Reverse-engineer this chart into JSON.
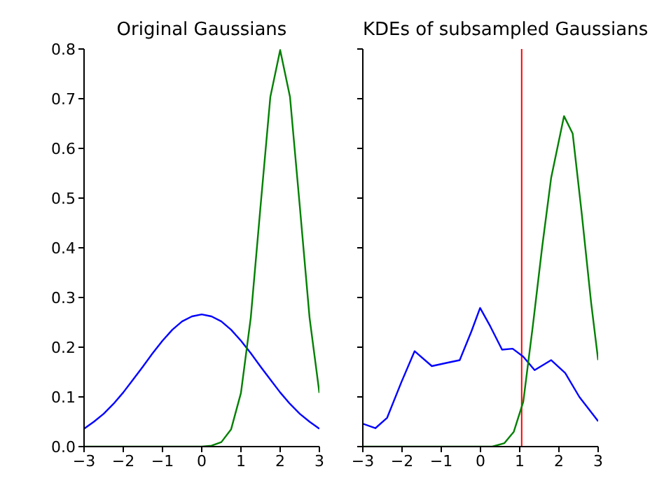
{
  "chart_data": [
    {
      "type": "line",
      "title": "Original Gaussians",
      "xlim": [
        -3,
        3
      ],
      "xticks": [
        -3,
        -2,
        -1,
        0,
        1,
        2,
        3
      ],
      "ylim": [
        0,
        0.8
      ],
      "yticks": [
        {
          "value": 0,
          "label": "0.0"
        },
        {
          "value": 0.1,
          "label": "0.1"
        },
        {
          "value": 0.2,
          "label": "0.2"
        },
        {
          "value": 0.3,
          "label": "0.3"
        },
        {
          "value": 0.4,
          "label": "0.4"
        },
        {
          "value": 0.5,
          "label": "0.5"
        },
        {
          "value": 0.6,
          "label": "0.6"
        },
        {
          "value": 0.7,
          "label": "0.7"
        },
        {
          "value": 0.8,
          "label": "0.8"
        }
      ],
      "grid": false,
      "legend": false,
      "marker": "none",
      "line_style": "solid",
      "series": [
        {
          "color": "#0000ff",
          "x": [
            -3,
            -2.75,
            -2.5,
            -2.25,
            -2,
            -1.75,
            -1.5,
            -1.25,
            -1,
            -0.75,
            -0.5,
            -0.25,
            0,
            0.25,
            0.5,
            0.75,
            1,
            1.25,
            1.5,
            1.75,
            2,
            2.25,
            2.5,
            2.75,
            3
          ],
          "values": [
            0.036,
            0.05,
            0.066,
            0.086,
            0.109,
            0.135,
            0.161,
            0.188,
            0.213,
            0.235,
            0.252,
            0.262,
            0.266,
            0.262,
            0.252,
            0.235,
            0.213,
            0.188,
            0.161,
            0.135,
            0.109,
            0.086,
            0.066,
            0.05,
            0.036
          ]
        },
        {
          "color": "#008000",
          "x": [
            -3,
            0,
            0.25,
            0.5,
            0.75,
            1,
            1.25,
            1.5,
            1.75,
            2,
            2.25,
            2.5,
            2.75,
            3
          ],
          "values": [
            0,
            0,
            0.002,
            0.009,
            0.035,
            0.108,
            0.259,
            0.484,
            0.704,
            0.798,
            0.704,
            0.484,
            0.259,
            0.108
          ]
        }
      ]
    },
    {
      "type": "line",
      "title": "KDEs of subsampled Gaussians",
      "xlim": [
        -3,
        3
      ],
      "xticks": [
        -3,
        -2,
        -1,
        0,
        1,
        2,
        3
      ],
      "ylim": [
        0,
        0.8
      ],
      "yticks": [
        {
          "value": 0,
          "label": null
        },
        {
          "value": 0.1,
          "label": null
        },
        {
          "value": 0.2,
          "label": null
        },
        {
          "value": 0.3,
          "label": null
        },
        {
          "value": 0.4,
          "label": null
        },
        {
          "value": 0.5,
          "label": null
        },
        {
          "value": 0.6,
          "label": null
        },
        {
          "value": 0.7,
          "label": null
        },
        {
          "value": 0.8,
          "label": null
        }
      ],
      "tick_labels": "x",
      "grid": false,
      "legend": false,
      "marker": "none",
      "line_style": "solid",
      "ref_lines": [
        {
          "axis": "x",
          "value": 1.05,
          "color": "#ff0000"
        }
      ],
      "series": [
        {
          "color": "#0000ff",
          "x": [
            -3,
            -2.68,
            -2.38,
            -2.02,
            -1.68,
            -1.24,
            -0.83,
            -0.53,
            -0.23,
            -0.01,
            0.25,
            0.55,
            0.82,
            1.09,
            1.38,
            1.8,
            2.16,
            2.52,
            3
          ],
          "values": [
            0.046,
            0.037,
            0.058,
            0.129,
            0.192,
            0.162,
            0.169,
            0.174,
            0.232,
            0.279,
            0.242,
            0.195,
            0.197,
            0.181,
            0.154,
            0.174,
            0.148,
            0.1,
            0.051
          ]
        },
        {
          "color": "#008000",
          "x": [
            -3,
            0.3,
            0.61,
            0.85,
            1.09,
            1.33,
            1.57,
            1.8,
            2.13,
            2.35,
            2.58,
            2.82,
            3
          ],
          "values": [
            0,
            0,
            0.007,
            0.03,
            0.09,
            0.24,
            0.4,
            0.54,
            0.665,
            0.63,
            0.47,
            0.29,
            0.174
          ]
        }
      ]
    }
  ]
}
